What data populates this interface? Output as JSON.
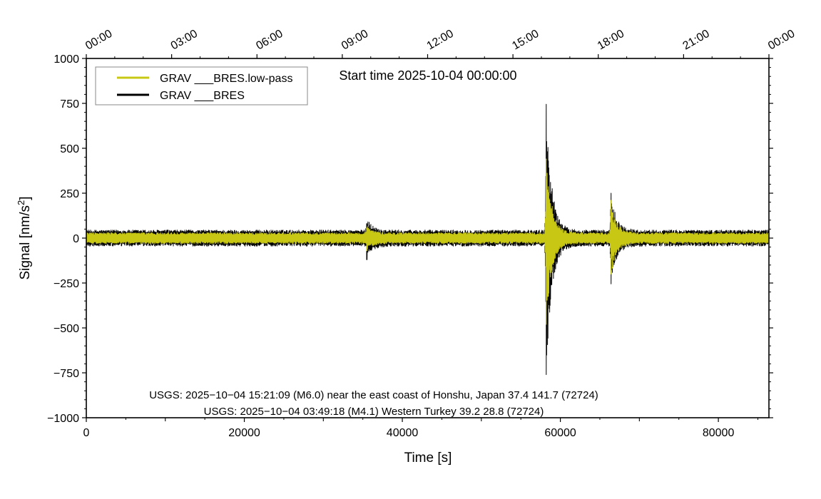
{
  "chart_data": {
    "type": "line",
    "title": "Start time 2025-10-04 00:00:00",
    "xlabel": "Time [s]",
    "ylabel_main": "Signal [nm/s",
    "ylabel_sup": "2",
    "ylabel_close": "]",
    "xlim": [
      0,
      86400
    ],
    "ylim": [
      -1000,
      1000
    ],
    "x_ticks": [
      0,
      20000,
      40000,
      60000,
      80000
    ],
    "x_tick_labels": [
      "0",
      "20000",
      "40000",
      "60000",
      "80000"
    ],
    "y_ticks": [
      -1000,
      -750,
      -500,
      -250,
      0,
      250,
      500,
      750,
      1000
    ],
    "y_tick_labels": [
      "−1000",
      "−750",
      "−500",
      "−250",
      "0",
      "250",
      "500",
      "750",
      "1000"
    ],
    "top_axis_ticks_s": [
      0,
      10800,
      21600,
      32400,
      43200,
      54000,
      64800,
      75600,
      86400
    ],
    "top_axis_labels": [
      "00:00",
      "03:00",
      "06:00",
      "09:00",
      "12:00",
      "15:00",
      "18:00",
      "21:00",
      "00:00"
    ],
    "legend": {
      "position": "top-left"
    },
    "series": [
      {
        "name": "GRAV ___BRES",
        "color": "#000000",
        "noise_amplitude": 45,
        "events": [
          {
            "t": 58200,
            "peak": 745,
            "trough": -760
          },
          {
            "t": 66400,
            "peak": 250,
            "trough": -255
          },
          {
            "t": 35500,
            "peak": 80,
            "trough": -120
          }
        ]
      },
      {
        "name": "GRAV ___BRES.low-pass",
        "color": "#c8c814",
        "noise_amplitude": 30,
        "events": [
          {
            "t": 58200,
            "peak": 440,
            "trough": -480
          },
          {
            "t": 66400,
            "peak": 210,
            "trough": -200
          },
          {
            "t": 35500,
            "peak": 55,
            "trough": -70
          }
        ]
      }
    ],
    "annotations": [
      "USGS: 2025−10−04 15:21:09 (M6.0) near the east coast of Honshu, Japan 37.4 141.7 (72724)",
      "USGS: 2025−10−04 03:49:18 (M4.1) Western Turkey 39.2 28.8 (72724)"
    ]
  }
}
